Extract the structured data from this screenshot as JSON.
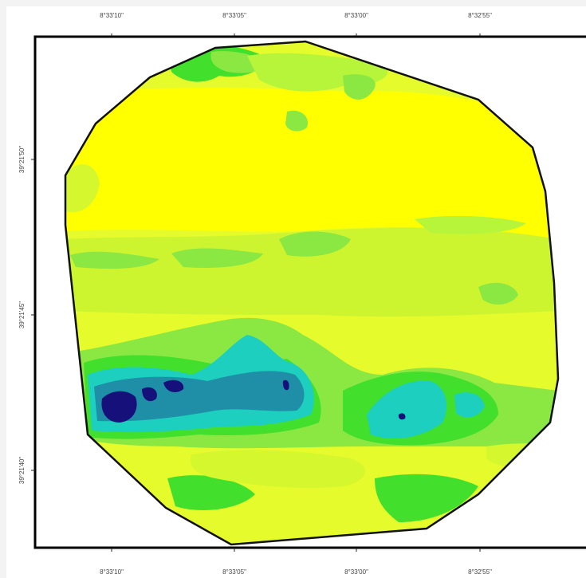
{
  "map": {
    "colors": {
      "frame": "#000000",
      "boundary": "#111111",
      "class_1_yellow": "#ffff00",
      "class_2_light_yellow_green": "#e6fb2c",
      "class_3_yellow_green": "#b6f53a",
      "class_4_light_green": "#8be842",
      "class_5_green": "#42df2c",
      "class_6_cyan": "#1ccfbf",
      "class_7_teal": "#1f8fa8",
      "class_8_navy": "#16107a"
    },
    "x_ticks_top": [
      "8°33'10\"",
      "8°33'05\"",
      "8°33'00\"",
      "8°32'55\""
    ],
    "x_ticks_bottom": [
      "8°33'10\"",
      "8°33'05\"",
      "8°33'00\"",
      "8°32'55\""
    ],
    "y_ticks_left": [
      "39°21'50\"",
      "39°21'45\"",
      "39°21'40\""
    ]
  }
}
